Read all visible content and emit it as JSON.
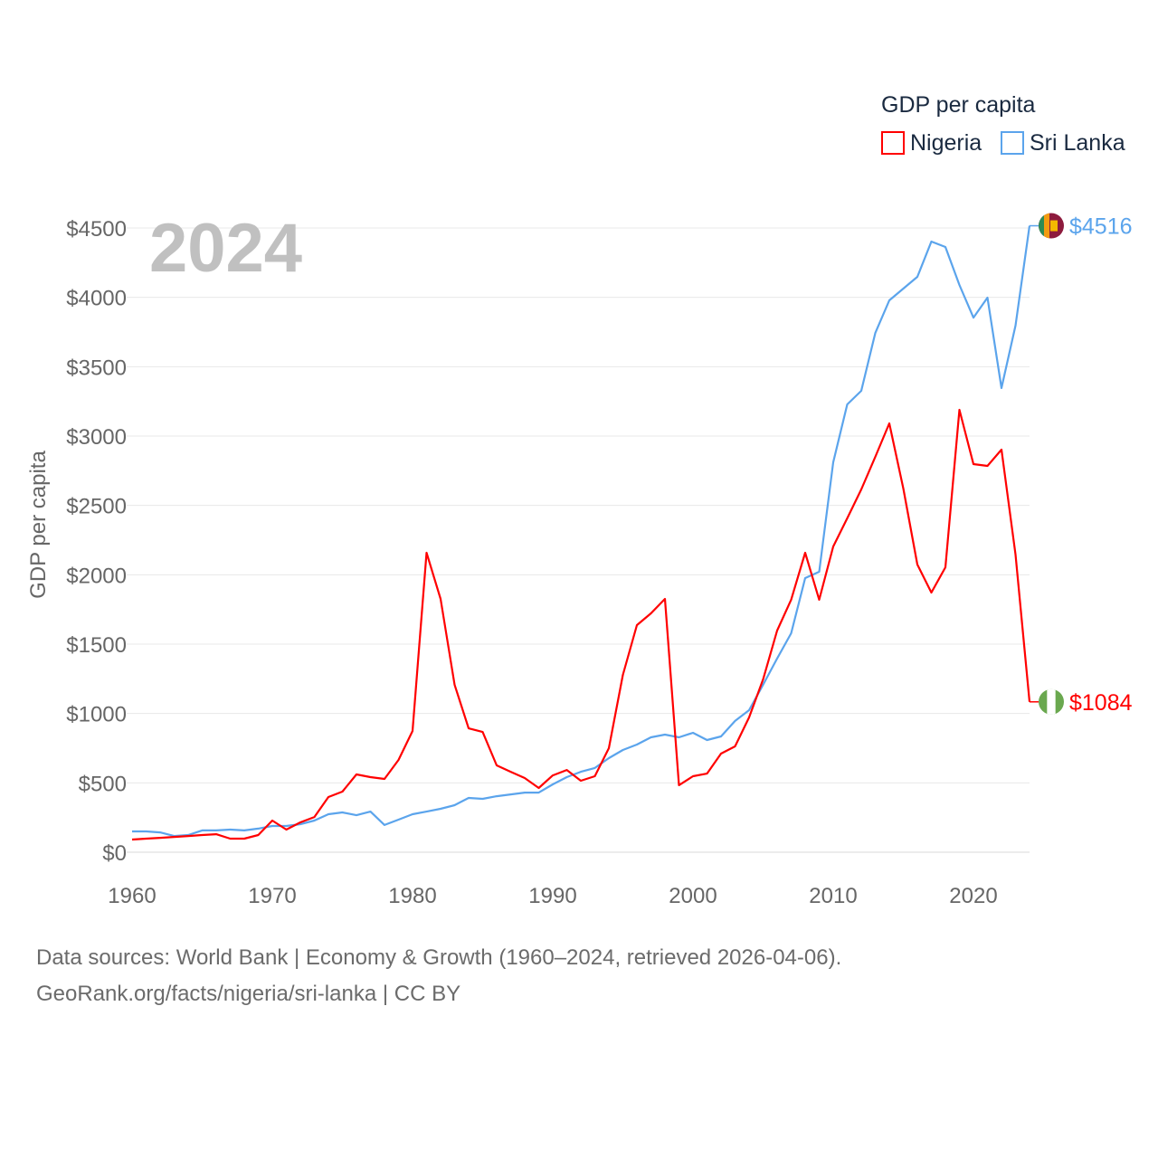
{
  "chart_data": {
    "type": "line",
    "title": "GDP per capita",
    "ylabel": "GDP per capita",
    "xlabel": "",
    "year_watermark": "2024",
    "xlim": [
      1960,
      2024
    ],
    "ylim": [
      0,
      4500
    ],
    "x_ticks": [
      1960,
      1970,
      1980,
      1990,
      2000,
      2010,
      2020
    ],
    "y_ticks": [
      0,
      500,
      1000,
      1500,
      2000,
      2500,
      3000,
      3500,
      4000,
      4500
    ],
    "y_tick_labels": [
      "$0",
      "$500",
      "$1000",
      "$1500",
      "$2000",
      "$2500",
      "$3000",
      "$3500",
      "$4000",
      "$4500"
    ],
    "grid": true,
    "legend_position": "top-right",
    "x": [
      1960,
      1961,
      1962,
      1963,
      1964,
      1965,
      1966,
      1967,
      1968,
      1969,
      1970,
      1971,
      1972,
      1973,
      1974,
      1975,
      1976,
      1977,
      1978,
      1979,
      1980,
      1981,
      1982,
      1983,
      1984,
      1985,
      1986,
      1987,
      1988,
      1989,
      1990,
      1991,
      1992,
      1993,
      1994,
      1995,
      1996,
      1997,
      1998,
      1999,
      2000,
      2001,
      2002,
      2003,
      2004,
      2005,
      2006,
      2007,
      2008,
      2009,
      2010,
      2011,
      2012,
      2013,
      2014,
      2015,
      2016,
      2017,
      2018,
      2019,
      2020,
      2021,
      2022,
      2023,
      2024
    ],
    "series": [
      {
        "name": "Nigeria",
        "color": "#ff0000",
        "end_label": "$1084",
        "flag": "nigeria-flag",
        "values": [
          91,
          98,
          104,
          110,
          117,
          124,
          130,
          98,
          98,
          124,
          228,
          163,
          215,
          254,
          398,
          437,
          561,
          541,
          528,
          665,
          874,
          2159,
          1826,
          1207,
          893,
          867,
          626,
          580,
          535,
          463,
          554,
          593,
          515,
          548,
          750,
          1278,
          1637,
          1722,
          1826,
          483,
          548,
          567,
          711,
          763,
          972,
          1246,
          1598,
          1820,
          2159,
          1820,
          2204,
          2407,
          2615,
          2850,
          3091,
          2622,
          2074,
          1872,
          2054,
          3189,
          2798,
          2785,
          2902,
          2146,
          1084
        ]
      },
      {
        "name": "Sri Lanka",
        "color": "#5ba4ec",
        "end_label": "$4516",
        "flag": "sri-lanka-flag",
        "values": [
          150,
          150,
          143,
          117,
          124,
          157,
          157,
          163,
          157,
          170,
          189,
          189,
          202,
          228,
          274,
          287,
          267,
          293,
          196,
          235,
          274,
          293,
          313,
          339,
          391,
          385,
          404,
          417,
          430,
          430,
          489,
          541,
          580,
          607,
          678,
          737,
          776,
          828,
          848,
          828,
          861,
          809,
          835,
          946,
          1024,
          1207,
          1396,
          1578,
          1976,
          2022,
          2811,
          3228,
          3326,
          3743,
          3978,
          4063,
          4148,
          4402,
          4363,
          4089,
          3854,
          3998,
          3346,
          3796,
          4516
        ]
      }
    ]
  },
  "footer": {
    "line1": "Data sources: World Bank | Economy & Growth (1960–2024, retrieved 2026-04-06).",
    "line2": "GeoRank.org/facts/nigeria/sri-lanka | CC BY"
  }
}
